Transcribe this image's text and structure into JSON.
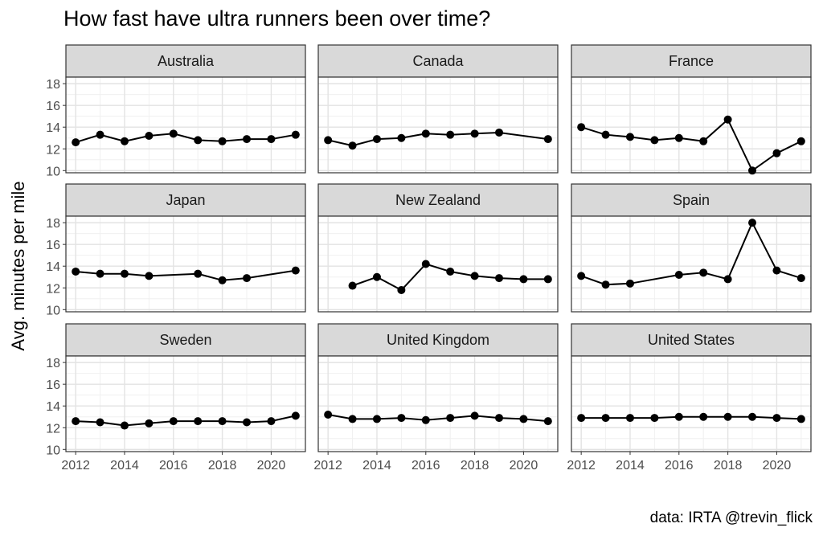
{
  "chart_data": {
    "type": "line",
    "layout": "facet-grid",
    "title": "How fast have ultra runners been over time?",
    "xlabel": "",
    "ylabel": "Avg. minutes per mile",
    "caption": "data: IRTA @trevin_flick",
    "xlim": [
      2011.6,
      2021.4
    ],
    "ylim": [
      9.8,
      18.6
    ],
    "x_ticks": [
      2012,
      2014,
      2016,
      2018,
      2020
    ],
    "y_ticks": [
      10,
      12,
      14,
      16,
      18
    ],
    "x_minor_ticks": [
      2013,
      2015,
      2017,
      2019,
      2021
    ],
    "y_minor_ticks": [
      11,
      13,
      15,
      17
    ],
    "grid": true,
    "legend": "none",
    "line_color": "#000000",
    "strip_color": "#d9d9d9",
    "panels": [
      {
        "name": "Australia",
        "x": [
          2012,
          2013,
          2014,
          2015,
          2016,
          2017,
          2018,
          2019,
          2020,
          2021
        ],
        "values": [
          12.6,
          13.3,
          12.7,
          13.2,
          13.4,
          12.8,
          12.7,
          12.9,
          12.9,
          13.3
        ]
      },
      {
        "name": "Canada",
        "x": [
          2012,
          2013,
          2014,
          2015,
          2016,
          2017,
          2018,
          2019,
          2021
        ],
        "values": [
          12.8,
          12.3,
          12.9,
          13.0,
          13.4,
          13.3,
          13.4,
          13.5,
          12.9
        ]
      },
      {
        "name": "France",
        "x": [
          2012,
          2013,
          2014,
          2015,
          2016,
          2017,
          2018,
          2019,
          2020,
          2021
        ],
        "values": [
          14.0,
          13.3,
          13.1,
          12.8,
          13.0,
          12.7,
          14.7,
          10.0,
          11.6,
          12.7
        ]
      },
      {
        "name": "Japan",
        "x": [
          2012,
          2013,
          2014,
          2015,
          2017,
          2018,
          2019,
          2021
        ],
        "values": [
          13.5,
          13.3,
          13.3,
          13.1,
          13.3,
          12.7,
          12.9,
          13.6
        ]
      },
      {
        "name": "New Zealand",
        "x": [
          2013,
          2014,
          2015,
          2016,
          2017,
          2018,
          2019,
          2020,
          2021
        ],
        "values": [
          12.2,
          13.0,
          11.8,
          14.2,
          13.5,
          13.1,
          12.9,
          12.8,
          12.8
        ]
      },
      {
        "name": "Spain",
        "x": [
          2012,
          2013,
          2014,
          2016,
          2017,
          2018,
          2019,
          2020,
          2021
        ],
        "values": [
          13.1,
          12.3,
          12.4,
          13.2,
          13.4,
          12.8,
          18.0,
          13.6,
          12.9
        ]
      },
      {
        "name": "Sweden",
        "x": [
          2012,
          2013,
          2014,
          2015,
          2016,
          2017,
          2018,
          2019,
          2020,
          2021
        ],
        "values": [
          12.6,
          12.5,
          12.2,
          12.4,
          12.6,
          12.6,
          12.6,
          12.5,
          12.6,
          13.1
        ]
      },
      {
        "name": "United Kingdom",
        "x": [
          2012,
          2013,
          2014,
          2015,
          2016,
          2017,
          2018,
          2019,
          2020,
          2021
        ],
        "values": [
          13.2,
          12.8,
          12.8,
          12.9,
          12.7,
          12.9,
          13.1,
          12.9,
          12.8,
          12.6
        ]
      },
      {
        "name": "United States",
        "x": [
          2012,
          2013,
          2014,
          2015,
          2016,
          2017,
          2018,
          2019,
          2020,
          2021
        ],
        "values": [
          12.9,
          12.9,
          12.9,
          12.9,
          13.0,
          13.0,
          13.0,
          13.0,
          12.9,
          12.8
        ]
      }
    ]
  }
}
